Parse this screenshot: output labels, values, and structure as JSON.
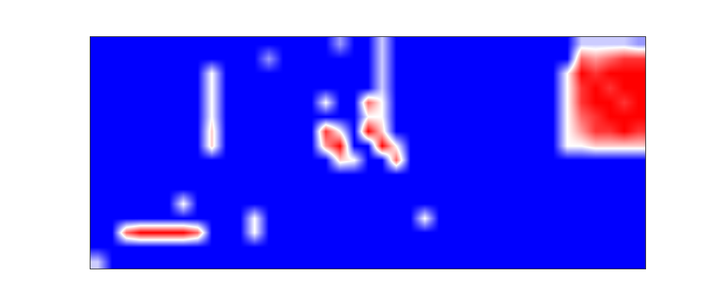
{
  "chart_data": {
    "type": "heatmap",
    "tick_labels": false,
    "zlim": [
      0,
      1
    ],
    "z": [
      [
        0,
        0,
        0,
        0,
        0,
        0,
        0,
        0,
        0,
        0,
        0,
        0,
        0,
        0,
        0,
        0,
        0,
        0.3,
        0,
        0,
        0.4,
        0,
        0,
        0,
        0,
        0,
        0,
        0,
        0,
        0,
        0,
        0,
        0,
        0,
        0.4,
        0.4,
        0.4,
        0.4,
        0.3
      ],
      [
        0,
        0,
        0,
        0,
        0,
        0,
        0,
        0,
        0,
        0,
        0,
        0,
        0.3,
        0,
        0,
        0,
        0,
        0,
        0,
        0,
        0.4,
        0,
        0,
        0,
        0,
        0,
        0,
        0,
        0,
        0,
        0,
        0,
        0,
        0,
        0.8,
        0.7,
        0.8,
        0.9,
        0.9
      ],
      [
        0,
        0,
        0,
        0,
        0,
        0,
        0,
        0,
        0.5,
        0,
        0,
        0,
        0,
        0,
        0,
        0,
        0,
        0,
        0,
        0,
        0.4,
        0,
        0,
        0,
        0,
        0,
        0,
        0,
        0,
        0,
        0,
        0,
        0,
        0.5,
        1,
        0.9,
        1,
        1,
        1
      ],
      [
        0,
        0,
        0,
        0,
        0,
        0,
        0,
        0,
        0.5,
        0,
        0,
        0,
        0,
        0,
        0,
        0,
        0,
        0,
        0,
        0,
        0.4,
        0,
        0,
        0,
        0,
        0,
        0,
        0,
        0,
        0,
        0,
        0,
        0,
        0.5,
        0.9,
        1,
        0.9,
        1,
        1
      ],
      [
        0,
        0,
        0,
        0,
        0,
        0,
        0,
        0,
        0.5,
        0,
        0,
        0,
        0,
        0,
        0,
        0,
        0.5,
        0,
        0,
        0.8,
        0.5,
        0,
        0,
        0,
        0,
        0,
        0,
        0,
        0,
        0,
        0,
        0,
        0,
        0.5,
        0.9,
        1,
        1,
        0.9,
        1
      ],
      [
        0,
        0,
        0,
        0,
        0,
        0,
        0,
        0,
        0.5,
        0,
        0,
        0,
        0,
        0,
        0,
        0,
        0,
        0,
        0,
        0.5,
        0.5,
        0,
        0,
        0,
        0,
        0,
        0,
        0,
        0,
        0,
        0,
        0,
        0,
        0.5,
        0.8,
        0.9,
        1,
        1,
        1
      ],
      [
        0,
        0,
        0,
        0,
        0,
        0,
        0,
        0,
        0.6,
        0,
        0,
        0,
        0,
        0,
        0,
        0,
        0.9,
        0.5,
        0,
        1,
        0.6,
        0,
        0,
        0,
        0,
        0,
        0,
        0,
        0,
        0,
        0,
        0,
        0,
        0.5,
        0.7,
        0.9,
        0.9,
        1,
        0.9
      ],
      [
        0,
        0,
        0,
        0,
        0,
        0,
        0,
        0,
        0.6,
        0,
        0,
        0,
        0,
        0,
        0,
        0,
        0.7,
        1,
        0,
        0,
        1,
        0.5,
        0,
        0,
        0,
        0,
        0,
        0,
        0,
        0,
        0,
        0,
        0,
        0.5,
        0.5,
        0.6,
        0.6,
        0.6,
        0.6
      ],
      [
        0,
        0,
        0,
        0,
        0,
        0,
        0,
        0,
        0,
        0,
        0,
        0,
        0,
        0,
        0,
        0,
        0,
        0.6,
        0.5,
        0,
        0,
        0.8,
        0,
        0,
        0,
        0,
        0,
        0,
        0,
        0,
        0,
        0,
        0,
        0,
        0,
        0,
        0,
        0,
        0
      ],
      [
        0,
        0,
        0,
        0,
        0,
        0,
        0,
        0,
        0,
        0,
        0,
        0,
        0,
        0,
        0,
        0,
        0,
        0,
        0,
        0,
        0,
        0,
        0,
        0,
        0,
        0,
        0,
        0,
        0,
        0,
        0,
        0,
        0,
        0,
        0,
        0,
        0,
        0,
        0
      ],
      [
        0,
        0,
        0,
        0,
        0,
        0,
        0,
        0,
        0,
        0,
        0,
        0,
        0,
        0,
        0,
        0,
        0,
        0,
        0,
        0,
        0,
        0,
        0,
        0,
        0,
        0,
        0,
        0,
        0,
        0,
        0,
        0,
        0,
        0,
        0,
        0,
        0,
        0,
        0
      ],
      [
        0,
        0,
        0,
        0,
        0,
        0,
        0.5,
        0,
        0,
        0,
        0,
        0,
        0,
        0,
        0,
        0,
        0,
        0,
        0,
        0,
        0,
        0,
        0,
        0,
        0,
        0,
        0,
        0,
        0,
        0,
        0,
        0,
        0,
        0,
        0,
        0,
        0,
        0,
        0
      ],
      [
        0,
        0,
        0,
        0,
        0,
        0,
        0,
        0,
        0,
        0,
        0,
        0.5,
        0,
        0,
        0,
        0,
        0,
        0,
        0,
        0,
        0,
        0,
        0,
        0.5,
        0,
        0,
        0,
        0,
        0,
        0,
        0,
        0,
        0,
        0,
        0,
        0,
        0,
        0,
        0
      ],
      [
        0,
        0,
        0.8,
        1,
        1,
        1,
        1,
        0.8,
        0,
        0,
        0,
        0.5,
        0,
        0,
        0,
        0,
        0,
        0,
        0,
        0,
        0,
        0,
        0,
        0,
        0,
        0,
        0,
        0,
        0,
        0,
        0,
        0,
        0,
        0,
        0,
        0,
        0,
        0,
        0
      ],
      [
        0,
        0,
        0,
        0,
        0,
        0,
        0,
        0,
        0,
        0,
        0,
        0,
        0,
        0,
        0,
        0,
        0,
        0,
        0,
        0,
        0,
        0,
        0,
        0,
        0,
        0,
        0,
        0,
        0,
        0,
        0,
        0,
        0,
        0,
        0,
        0,
        0,
        0,
        0
      ],
      [
        0.4,
        0,
        0,
        0,
        0,
        0,
        0,
        0,
        0,
        0,
        0,
        0,
        0,
        0,
        0,
        0,
        0,
        0,
        0,
        0,
        0,
        0,
        0,
        0,
        0,
        0,
        0,
        0,
        0,
        0,
        0,
        0,
        0,
        0,
        0,
        0,
        0,
        0,
        0
      ]
    ]
  }
}
